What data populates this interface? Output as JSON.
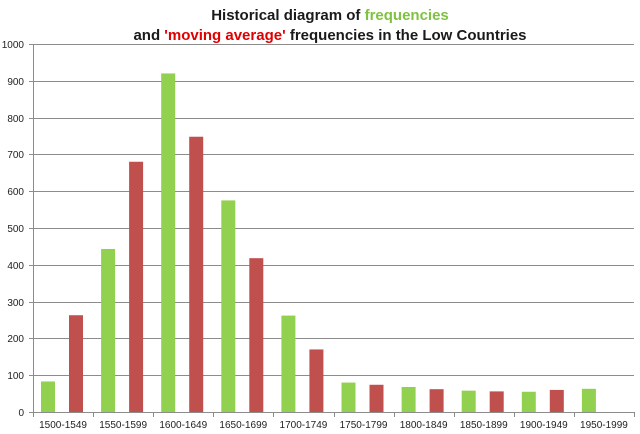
{
  "chart_data": {
    "type": "bar",
    "title_line1": {
      "a": "Historical diagram of ",
      "b": "frequencies"
    },
    "title_line2": {
      "a": "and ",
      "b": "'moving average'",
      "c": " frequencies  in the Low Countries"
    },
    "xlabel": "",
    "ylabel": "",
    "ylim": [
      0,
      1000
    ],
    "yticks": [
      0,
      100,
      200,
      300,
      400,
      500,
      600,
      700,
      800,
      900,
      1000
    ],
    "grid": true,
    "legend": "none",
    "categories": [
      "1500-1549",
      "1550-1599",
      "1600-1649",
      "1650-1699",
      "1700-1749",
      "1750-1799",
      "1800-1849",
      "1850-1899",
      "1900-1949",
      "1950-1999"
    ],
    "series": [
      {
        "values": [
          83,
          443,
          920,
          575,
          262,
          80,
          68,
          58,
          55,
          63
        ]
      },
      {
        "values": [
          263,
          680,
          748,
          418,
          170,
          74,
          62,
          56,
          60,
          null
        ]
      }
    ],
    "colors": {
      "series1": "#92d050",
      "series2": "#c0504d",
      "title_green": "#7fc241",
      "title_red": "#e00000",
      "title_dark": "#1a1a1a",
      "grid": "#8c8c8c"
    }
  }
}
